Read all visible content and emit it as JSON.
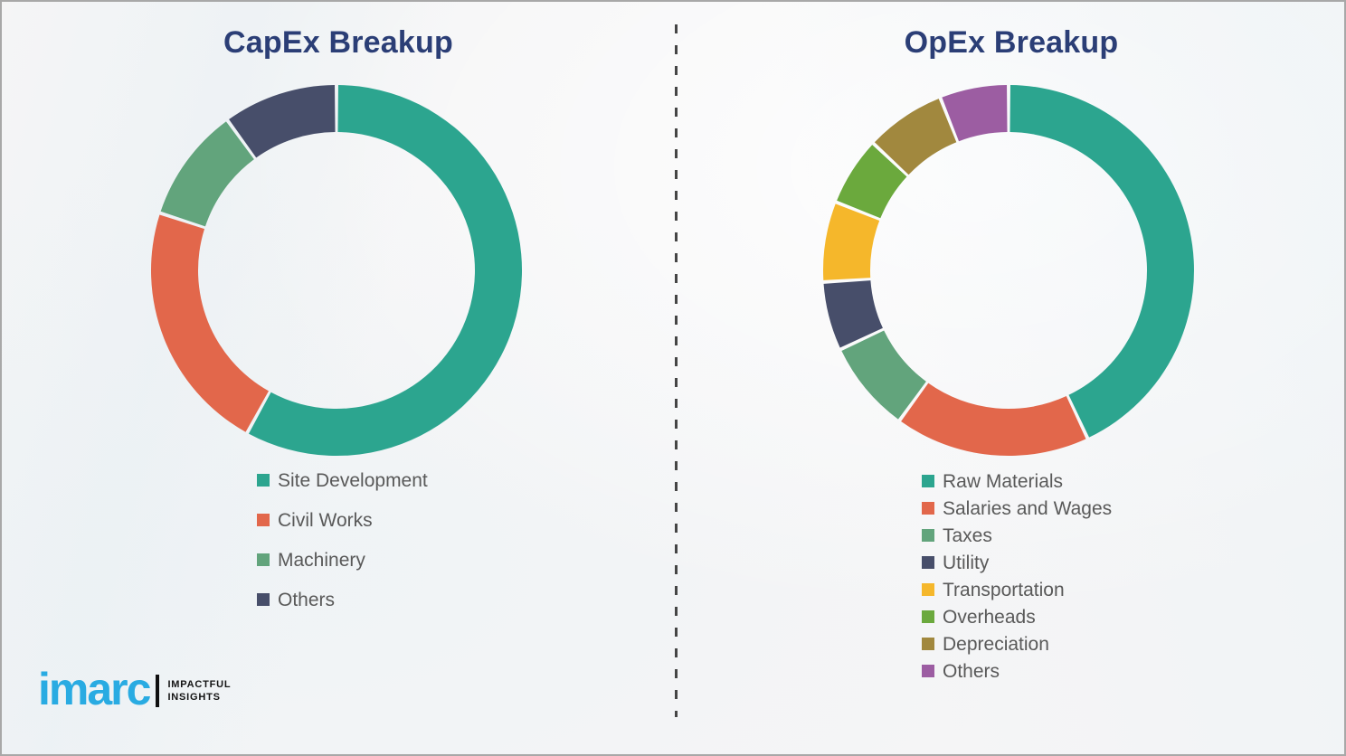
{
  "chart_data": [
    {
      "type": "pie",
      "subtype": "donut",
      "title": "CapEx Breakup",
      "categories": [
        "Site Development",
        "Civil Works",
        "Machinery",
        "Others"
      ],
      "values": [
        58,
        22,
        10,
        10
      ],
      "unit": "percent-estimated-from-arc-angles",
      "colors": [
        "#2ca58f",
        "#e2674b",
        "#62a47c",
        "#474e6a"
      ],
      "start_angle_deg": 0,
      "direction": "clockwise",
      "legend_position": "below-left"
    },
    {
      "type": "pie",
      "subtype": "donut",
      "title": "OpEx Breakup",
      "categories": [
        "Raw Materials",
        "Salaries and Wages",
        "Taxes",
        "Utility",
        "Transportation",
        "Overheads",
        "Depreciation",
        "Others"
      ],
      "values": [
        43,
        17,
        8,
        6,
        7,
        6,
        7,
        6
      ],
      "unit": "percent-estimated-from-arc-angles",
      "colors": [
        "#2ca58f",
        "#e2674b",
        "#62a47c",
        "#474e6a",
        "#f5b72b",
        "#6ba93d",
        "#a1883e",
        "#9c5da2"
      ],
      "start_angle_deg": 0,
      "direction": "clockwise",
      "legend_position": "below-left"
    }
  ],
  "logo": {
    "brand": "imarc",
    "tagline_line1": "IMPACTFUL",
    "tagline_line2": "INSIGHTS",
    "brand_color": "#29abe2"
  },
  "style": {
    "title_color": "#2b3e76",
    "legend_text_color": "#595959",
    "divider_color": "#454545",
    "background": "#f5f5f6",
    "border_color": "#a8a8a8"
  }
}
